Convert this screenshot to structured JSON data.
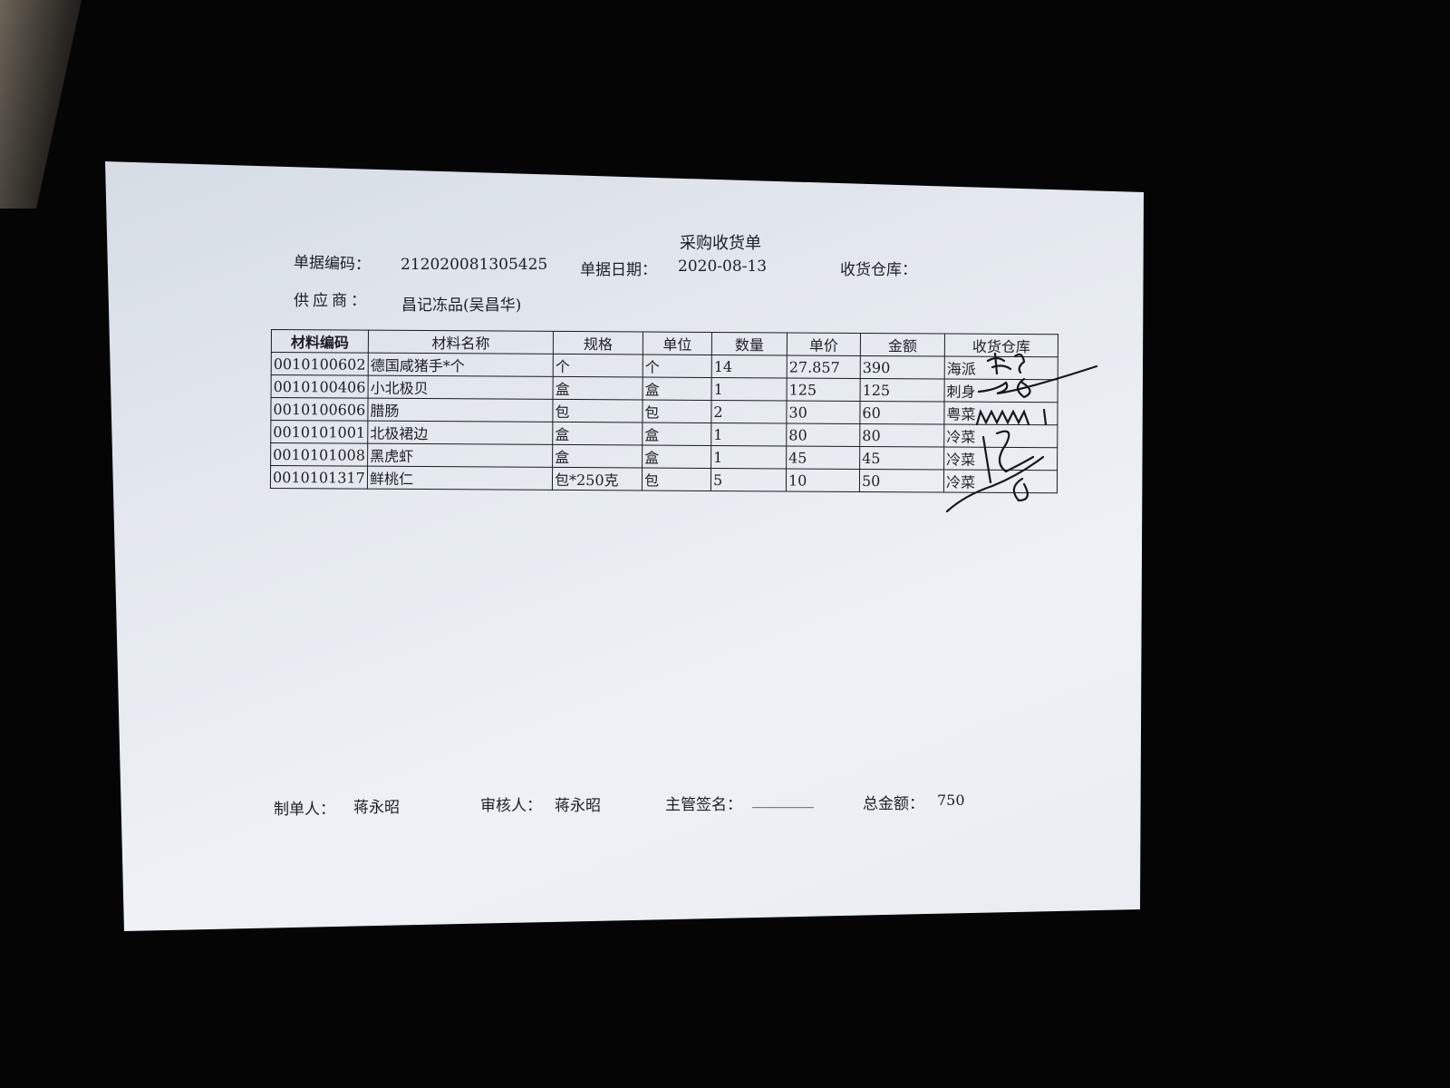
{
  "document": {
    "title": "采购收货单",
    "doc_no_label": "单据编码：",
    "doc_no": "212020081305425",
    "doc_date_label": "单据日期：",
    "doc_date": "2020-08-13",
    "warehouse_label": "收货仓库：",
    "supplier_label": "供应商：",
    "supplier": "昌记冻品(吴昌华)"
  },
  "table": {
    "headers": [
      "材料编码",
      "材料名称",
      "规格",
      "单位",
      "数量",
      "单价",
      "金额",
      "收货仓库"
    ],
    "rows": [
      [
        "0010100602",
        "德国咸猪手*个",
        "个",
        "个",
        "14",
        "27.857",
        "390",
        "海派"
      ],
      [
        "0010100406",
        "小北极贝",
        "盒",
        "盒",
        "1",
        "125",
        "125",
        "刺身"
      ],
      [
        "0010100606",
        "腊肠",
        "包",
        "包",
        "2",
        "30",
        "60",
        "粤菜"
      ],
      [
        "0010101001",
        "北极裙边",
        "盒",
        "盒",
        "1",
        "80",
        "80",
        "冷菜"
      ],
      [
        "0010101008",
        "黑虎虾",
        "盒",
        "盒",
        "1",
        "45",
        "45",
        "冷菜"
      ],
      [
        "0010101317",
        "鲜桃仁",
        "包*250克",
        "包",
        "5",
        "10",
        "50",
        "冷菜"
      ]
    ]
  },
  "footer": {
    "maker_label": "制单人：",
    "maker": "蒋永昭",
    "reviewer_label": "审核人：",
    "reviewer": "蒋永昭",
    "supervisor_label": "主管签名：",
    "supervisor_blank": "________",
    "total_label": "总金额：",
    "total": "750"
  }
}
